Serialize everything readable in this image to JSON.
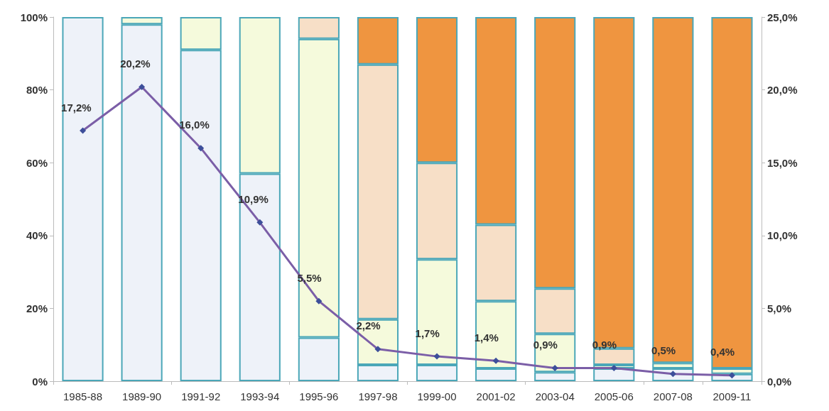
{
  "chart_data": {
    "type": "bar",
    "stacked": true,
    "categories": [
      "1985-88",
      "1989-90",
      "1991-92",
      "1993-94",
      "1995-96",
      "1997-98",
      "1999-00",
      "2001-02",
      "2003-04",
      "2005-06",
      "2007-08",
      "2009-11"
    ],
    "series": [
      {
        "color": "#eef2f9",
        "values": [
          100,
          98,
          91,
          57,
          12,
          4.5,
          4.5,
          3.5,
          2.5,
          3.5,
          3.5,
          2
        ]
      },
      {
        "color": "#f5fadc",
        "values": [
          null,
          2,
          9,
          43,
          82,
          12.5,
          29,
          18.5,
          10.5,
          1,
          1.5,
          1.5
        ]
      },
      {
        "color": "#f7dfc7",
        "values": [
          null,
          null,
          null,
          null,
          6,
          70,
          26.5,
          21,
          12.5,
          4.5,
          null,
          null
        ]
      },
      {
        "color": "#ef9540",
        "values": [
          null,
          null,
          null,
          null,
          null,
          13,
          40,
          57,
          74.5,
          91,
          95,
          96.5
        ]
      },
      {
        "type": "line",
        "axis": "y2",
        "color": "#7b5ea7",
        "marker": "diamond",
        "values": [
          17.2,
          20.2,
          16.0,
          10.9,
          5.5,
          2.2,
          1.7,
          1.4,
          0.9,
          0.9,
          0.5,
          0.4
        ],
        "value_labels": [
          "17,2%",
          "20,2%",
          "16,0%",
          "10,9%",
          "5,5%",
          "2,2%",
          "1,7%",
          "1,4%",
          "0,9%",
          "0,9%",
          "0,5%",
          "0,4%"
        ]
      }
    ],
    "ylim": [
      0,
      100
    ],
    "yticks": [
      {
        "value": 0,
        "label": "0%"
      },
      {
        "value": 20,
        "label": "20%"
      },
      {
        "value": 40,
        "label": "40%"
      },
      {
        "value": 60,
        "label": "60%"
      },
      {
        "value": 80,
        "label": "80%"
      },
      {
        "value": 100,
        "label": "100%"
      }
    ],
    "y2lim": [
      0,
      25
    ],
    "y2ticks": [
      {
        "value": 0,
        "label": "0,0%"
      },
      {
        "value": 5,
        "label": "5,0%"
      },
      {
        "value": 10,
        "label": "10,0%"
      },
      {
        "value": 15,
        "label": "15,0%"
      },
      {
        "value": 20,
        "label": "20,0%"
      },
      {
        "value": 25,
        "label": "25,0%"
      }
    ],
    "grid": false
  }
}
